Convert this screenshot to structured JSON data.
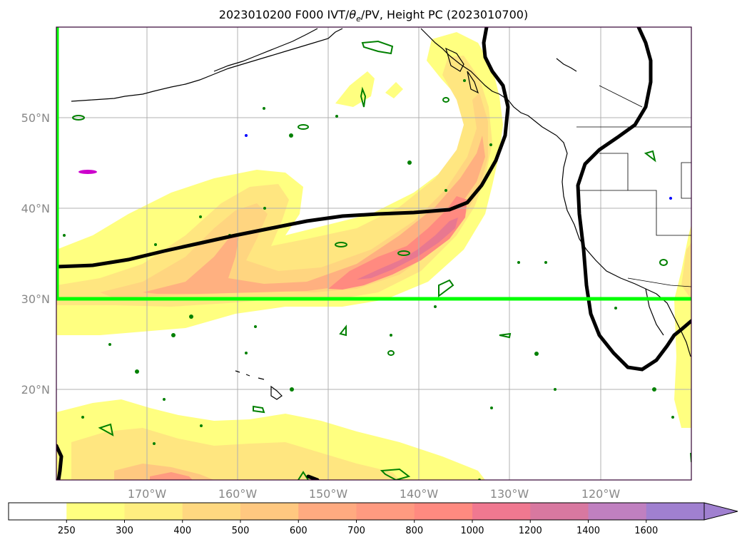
{
  "title": {
    "prefix": "2023010200 F000 IVT/",
    "theta": "θ",
    "theta_sub": "e",
    "suffix": "/PV, Height PC (2023010700)"
  },
  "map": {
    "lat_labels": [
      "50°N",
      "40°N",
      "30°N",
      "20°N"
    ],
    "lon_labels": [
      "170°W",
      "160°W",
      "150°W",
      "140°W",
      "130°W",
      "120°W"
    ],
    "lat_range": [
      10,
      60
    ],
    "lon_range": [
      -180,
      -110
    ],
    "region_box": {
      "color": "#00ff00",
      "west": -180,
      "south": 30,
      "north": 60
    },
    "height_contour_color": "#000000",
    "pv_contour_color": "#008000",
    "theta_contour_color": "#cc00cc"
  },
  "colorbar": {
    "labels": [
      "250",
      "300",
      "400",
      "500",
      "600",
      "700",
      "800",
      "1000",
      "1200",
      "1400",
      "1600"
    ],
    "colors": [
      "#ffffff",
      "#ffff80",
      "#ffee80",
      "#ffd880",
      "#ffc880",
      "#ffaa80",
      "#ff9a80",
      "#ff8a80",
      "#f07890",
      "#d878a0",
      "#c080c0",
      "#a080d0"
    ],
    "extend": "max"
  }
}
